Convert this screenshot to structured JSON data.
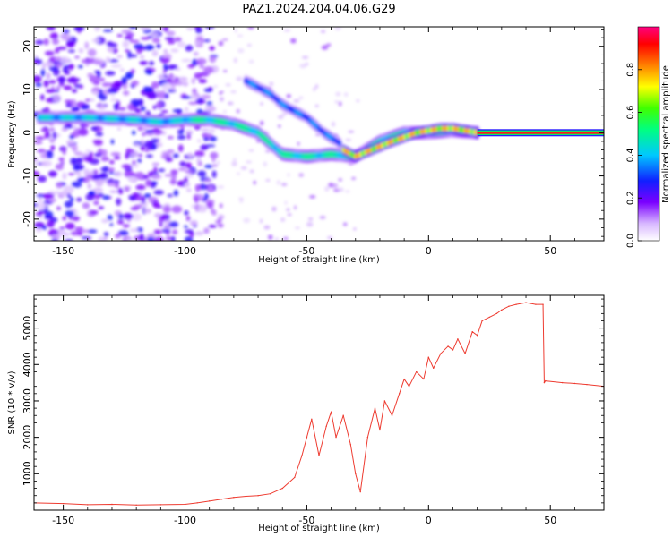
{
  "title": "PAZ1.2024.204.04.06.G29",
  "chart_data": [
    {
      "type": "heatmap",
      "xlabel": "Height of straight line (km)",
      "ylabel": "Frequency (Hz)",
      "xlim": [
        -162,
        72
      ],
      "ylim": [
        -25,
        24.5
      ],
      "xticks": [
        -150,
        -100,
        -50,
        0,
        50
      ],
      "yticks": [
        -20,
        -10,
        0,
        10,
        20
      ],
      "colorbar": {
        "label": "Normalized spectral amplitude",
        "range": [
          0,
          1
        ],
        "ticks": [
          0.0,
          0.2,
          0.4,
          0.6,
          0.8
        ]
      },
      "ridge_main": [
        [
          -160,
          3.5
        ],
        [
          -140,
          3.5
        ],
        [
          -120,
          3.0
        ],
        [
          -110,
          2.5
        ],
        [
          -100,
          3.0
        ],
        [
          -90,
          3.0
        ],
        [
          -80,
          2.0
        ],
        [
          -70,
          0.0
        ],
        [
          -60,
          -5.0
        ],
        [
          -50,
          -5.5
        ],
        [
          -40,
          -5.0
        ],
        [
          -30,
          -5.5
        ],
        [
          -20,
          -2.0
        ],
        [
          -10,
          0.0
        ],
        [
          0,
          0.0
        ],
        [
          10,
          0.5
        ],
        [
          20,
          0.0
        ],
        [
          72,
          0.0
        ]
      ],
      "ridge_branch": [
        [
          -75,
          12
        ],
        [
          -65,
          9
        ],
        [
          -60,
          6.5
        ],
        [
          -50,
          3.5
        ],
        [
          -43,
          0.0
        ],
        [
          -35,
          -3.0
        ]
      ],
      "ridge_peak": [
        [
          -35,
          -4.0
        ],
        [
          -30,
          -5.5
        ],
        [
          -15,
          -2.0
        ],
        [
          -5,
          0.0
        ],
        [
          5,
          1.0
        ],
        [
          10,
          1.0
        ],
        [
          20,
          0.0
        ],
        [
          72,
          0.0
        ]
      ]
    },
    {
      "type": "line",
      "xlabel": "Height of straight line (km)",
      "ylabel": "SNR (10 * v/v)",
      "xlim": [
        -162,
        72
      ],
      "ylim": [
        0,
        5900
      ],
      "xticks": [
        -150,
        -100,
        -50,
        0,
        50
      ],
      "yticks": [
        1000,
        2000,
        3000,
        4000,
        5000
      ],
      "series": [
        {
          "color": "#ee3b30",
          "x": [
            -162,
            -150,
            -140,
            -130,
            -120,
            -110,
            -100,
            -95,
            -90,
            -85,
            -80,
            -75,
            -70,
            -65,
            -60,
            -55,
            -52,
            -50,
            -48,
            -45,
            -42,
            -40,
            -38,
            -35,
            -32,
            -30,
            -28,
            -25,
            -22,
            -20,
            -18,
            -15,
            -12,
            -10,
            -8,
            -5,
            -2,
            0,
            2,
            5,
            8,
            10,
            12,
            15,
            18,
            20,
            22,
            25,
            28,
            30,
            33,
            36,
            40,
            44,
            47,
            47.5,
            48,
            55,
            60,
            65,
            72
          ],
          "y": [
            200,
            180,
            150,
            160,
            140,
            150,
            160,
            200,
            250,
            300,
            350,
            380,
            400,
            450,
            600,
            900,
            1500,
            2000,
            2500,
            1500,
            2300,
            2700,
            2000,
            2600,
            1800,
            1000,
            500,
            2000,
            2800,
            2200,
            3000,
            2600,
            3200,
            3600,
            3400,
            3800,
            3600,
            4200,
            3900,
            4300,
            4500,
            4400,
            4700,
            4300,
            4900,
            4800,
            5200,
            5300,
            5400,
            5500,
            5600,
            5650,
            5700,
            5650,
            5650,
            3500,
            3550,
            3500,
            3480,
            3450,
            3400
          ]
        }
      ]
    }
  ]
}
